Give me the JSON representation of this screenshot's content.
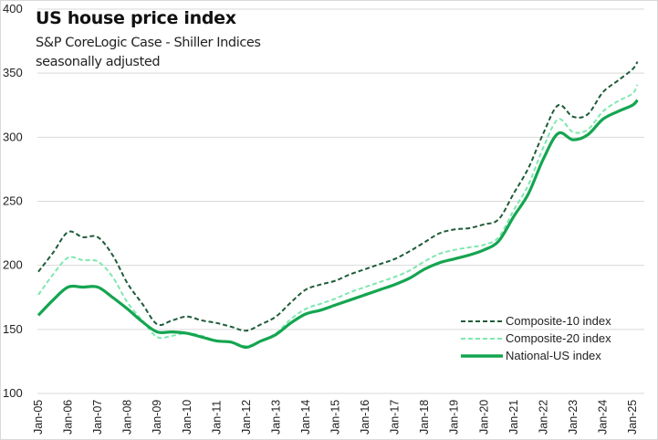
{
  "chart_data": {
    "type": "line",
    "title": "US house price index",
    "subtitle_lines": [
      "S&P CoreLogic Case - Shiller Indices",
      "seasonally adjusted"
    ],
    "xlabel": "",
    "ylabel": "",
    "ylim": [
      100,
      400
    ],
    "yticks": [
      100,
      150,
      200,
      250,
      300,
      350,
      400
    ],
    "grid": true,
    "legend_position": "bottom-right",
    "x_tick_labels": [
      "Jan-05",
      "Jan-06",
      "Jan-07",
      "Jan-08",
      "Jan-09",
      "Jan-10",
      "Jan-11",
      "Jan-12",
      "Jan-13",
      "Jan-14",
      "Jan-15",
      "Jan-16",
      "Jan-17",
      "Jan-18",
      "Jan-19",
      "Jan-20",
      "Jan-21",
      "Jan-22",
      "Jan-23",
      "Jan-24",
      "Jan-25"
    ],
    "x": [
      2005.0,
      2005.5,
      2006.0,
      2006.5,
      2007.0,
      2007.5,
      2008.0,
      2008.5,
      2009.0,
      2009.5,
      2010.0,
      2010.5,
      2011.0,
      2011.5,
      2012.0,
      2012.5,
      2013.0,
      2013.5,
      2014.0,
      2014.5,
      2015.0,
      2015.5,
      2016.0,
      2016.5,
      2017.0,
      2017.5,
      2018.0,
      2018.5,
      2019.0,
      2019.5,
      2020.0,
      2020.5,
      2021.0,
      2021.5,
      2022.0,
      2022.5,
      2023.0,
      2023.5,
      2024.0,
      2024.5,
      2025.0,
      2025.17
    ],
    "series": [
      {
        "name": "Composite-10 index",
        "style": "dashed",
        "color": "#1e5c3a",
        "values": [
          195,
          210,
          226,
          222,
          222,
          208,
          186,
          170,
          154,
          157,
          160,
          157,
          155,
          152,
          149,
          154,
          160,
          171,
          181,
          185,
          188,
          193,
          197,
          201,
          205,
          211,
          218,
          225,
          228,
          229,
          232,
          236,
          256,
          276,
          303,
          325,
          316,
          318,
          335,
          344,
          353,
          359
        ]
      },
      {
        "name": "Composite-20 index",
        "style": "dashed",
        "color": "#7fe8b0",
        "values": [
          177,
          193,
          206,
          204,
          203,
          191,
          171,
          157,
          144,
          145,
          147,
          145,
          141,
          140,
          137,
          141,
          147,
          158,
          166,
          170,
          174,
          179,
          183,
          187,
          191,
          196,
          203,
          209,
          212,
          214,
          216,
          222,
          243,
          263,
          292,
          314,
          304,
          306,
          320,
          328,
          334,
          341
        ]
      },
      {
        "name": "National-US index",
        "style": "solid",
        "color": "#14a550",
        "values": [
          161,
          173,
          183,
          183,
          183,
          175,
          166,
          156,
          148,
          148,
          147,
          144,
          141,
          140,
          136,
          141,
          146,
          155,
          162,
          165,
          169,
          173,
          177,
          181,
          185,
          190,
          197,
          202,
          205,
          208,
          212,
          219,
          238,
          256,
          283,
          303,
          298,
          302,
          314,
          320,
          325,
          329
        ]
      }
    ]
  }
}
